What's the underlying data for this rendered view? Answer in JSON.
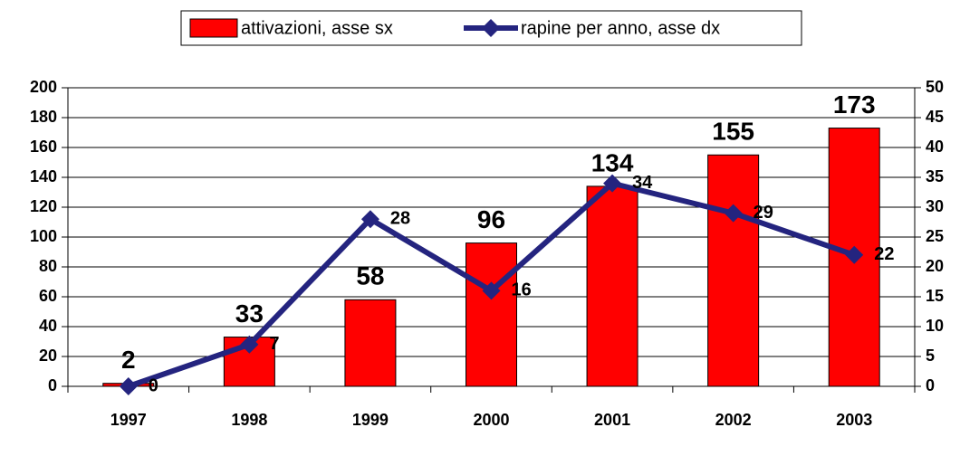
{
  "chart_data": {
    "type": "bar",
    "categories": [
      "1997",
      "1998",
      "1999",
      "2000",
      "2001",
      "2002",
      "2003"
    ],
    "series": [
      {
        "name": "attivazioni, asse sx",
        "type": "bar",
        "color": "#ff0000",
        "values": [
          2,
          33,
          58,
          96,
          134,
          155,
          173
        ]
      },
      {
        "name": "rapine per anno, asse dx",
        "type": "line",
        "axis": "y2",
        "color": "#24247f",
        "values": [
          0,
          7,
          28,
          16,
          34,
          29,
          22
        ]
      }
    ],
    "ylim": [
      0,
      200
    ],
    "yticks": [
      0,
      20,
      40,
      60,
      80,
      100,
      120,
      140,
      160,
      180,
      200
    ],
    "y2lim": [
      0,
      50
    ],
    "y2ticks": [
      0,
      5,
      10,
      15,
      20,
      25,
      30,
      35,
      40,
      45,
      50
    ],
    "grid": true
  }
}
